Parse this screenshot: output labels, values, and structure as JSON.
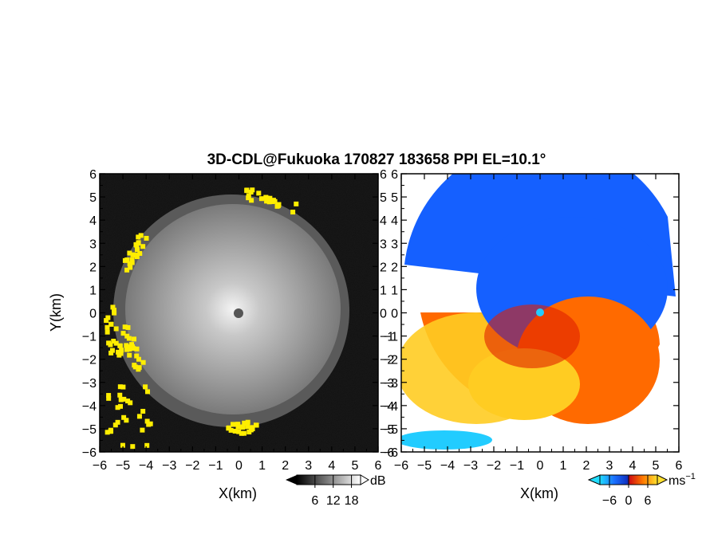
{
  "chart_data": [
    {
      "type": "heatmap",
      "panel": "reflectivity",
      "title": "3D-CDL@Fukuoka 170827 183658 PPI EL=10.1°",
      "xlabel": "X(km)",
      "ylabel": "Y(km)",
      "xlim": [
        -6,
        6
      ],
      "ylim": [
        -6,
        6
      ],
      "x_ticks": [
        "−6",
        "−5",
        "−4",
        "−3",
        "−2",
        "−1",
        "0",
        "1",
        "2",
        "3",
        "4",
        "5",
        "6"
      ],
      "y_ticks": [
        "6",
        "5",
        "4",
        "3",
        "2",
        "1",
        "0",
        "−1",
        "−2",
        "−3",
        "−4",
        "−5",
        "−6"
      ],
      "colorbar": {
        "ticks": [
          "6",
          "12",
          "18"
        ],
        "unit": "dB",
        "range": [
          0,
          21
        ]
      },
      "colors": {
        "background": "#151515",
        "disk": "#8c8c8c",
        "center": "#e6e6e6",
        "flag": "#ffee00"
      }
    },
    {
      "type": "heatmap",
      "panel": "doppler_velocity",
      "xlabel": "X(km)",
      "xlim": [
        -6,
        6
      ],
      "ylim": [
        -6,
        6
      ],
      "x_ticks": [
        "−6",
        "−5",
        "−4",
        "−3",
        "−2",
        "−1",
        "0",
        "1",
        "2",
        "3",
        "4",
        "5",
        "6"
      ],
      "y_ticks": [
        "6",
        "5",
        "4",
        "3",
        "2",
        "1",
        "0",
        "−1",
        "−2",
        "−3",
        "−4",
        "−5",
        "−6"
      ],
      "colorbar": {
        "ticks": [
          "−6",
          "0",
          "6"
        ],
        "unit": "ms",
        "unit_exp": "−1",
        "range": [
          -9,
          9
        ]
      },
      "colors": {
        "toward": "#1560ff",
        "away": "#ff6a00",
        "light": "#ffcc22",
        "cyan": "#22ccff",
        "red": "#e02000"
      }
    }
  ]
}
